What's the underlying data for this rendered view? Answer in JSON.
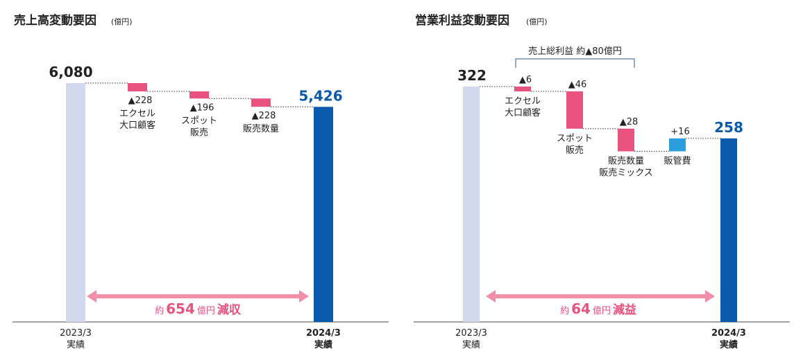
{
  "colors": {
    "start_bar": "#d2d9ee",
    "end_bar": "#0a5aac",
    "decrease": "#e8527f",
    "increase": "#2a9fdc",
    "arrow": "#ef8fa8",
    "arrow_text": "#e8527f",
    "end_value_text": "#0a5aac"
  },
  "chart_data": [
    {
      "type": "bar",
      "subtype": "waterfall",
      "title": "売上高変動要因",
      "unit": "(億円)",
      "start": {
        "value": 6080,
        "label": "6,080",
        "axis_label": [
          "2023/3",
          "実績"
        ]
      },
      "end": {
        "value": 5426,
        "label": "5,426",
        "axis_label": [
          "2024/3",
          "実績"
        ]
      },
      "steps": [
        {
          "delta": -228,
          "value_label": "▲228",
          "category": [
            "エクセル",
            "大口顧客"
          ]
        },
        {
          "delta": -196,
          "value_label": "▲196",
          "category": [
            "スポット",
            "販売"
          ]
        },
        {
          "delta": -228,
          "value_label": "▲228",
          "category": [
            "販売数量"
          ]
        }
      ],
      "summary": {
        "prefix": "約",
        "number": "654",
        "unit": "億円",
        "suffix": "減収"
      }
    },
    {
      "type": "bar",
      "subtype": "waterfall",
      "title": "営業利益変動要因",
      "unit": "(億円)",
      "start": {
        "value": 322,
        "label": "322",
        "axis_label": [
          "2023/3",
          "実績"
        ]
      },
      "end": {
        "value": 258,
        "label": "258",
        "axis_label": [
          "2024/3",
          "実績"
        ]
      },
      "steps": [
        {
          "delta": -6,
          "value_label": "▲6",
          "category": [
            "エクセル",
            "大口顧客"
          ]
        },
        {
          "delta": -46,
          "value_label": "▲46",
          "category": [
            "スポット",
            "販売"
          ]
        },
        {
          "delta": -28,
          "value_label": "▲28",
          "category": [
            "販売数量",
            "販売ミックス"
          ]
        },
        {
          "delta": 16,
          "value_label": "+16",
          "category": [
            "販管費"
          ]
        }
      ],
      "bracket": {
        "label": "売上総利益 約▲80億円",
        "from_step": 0,
        "to_step": 2
      },
      "summary": {
        "prefix": "約",
        "number": "64",
        "unit": "億円",
        "suffix": "減益"
      }
    }
  ]
}
